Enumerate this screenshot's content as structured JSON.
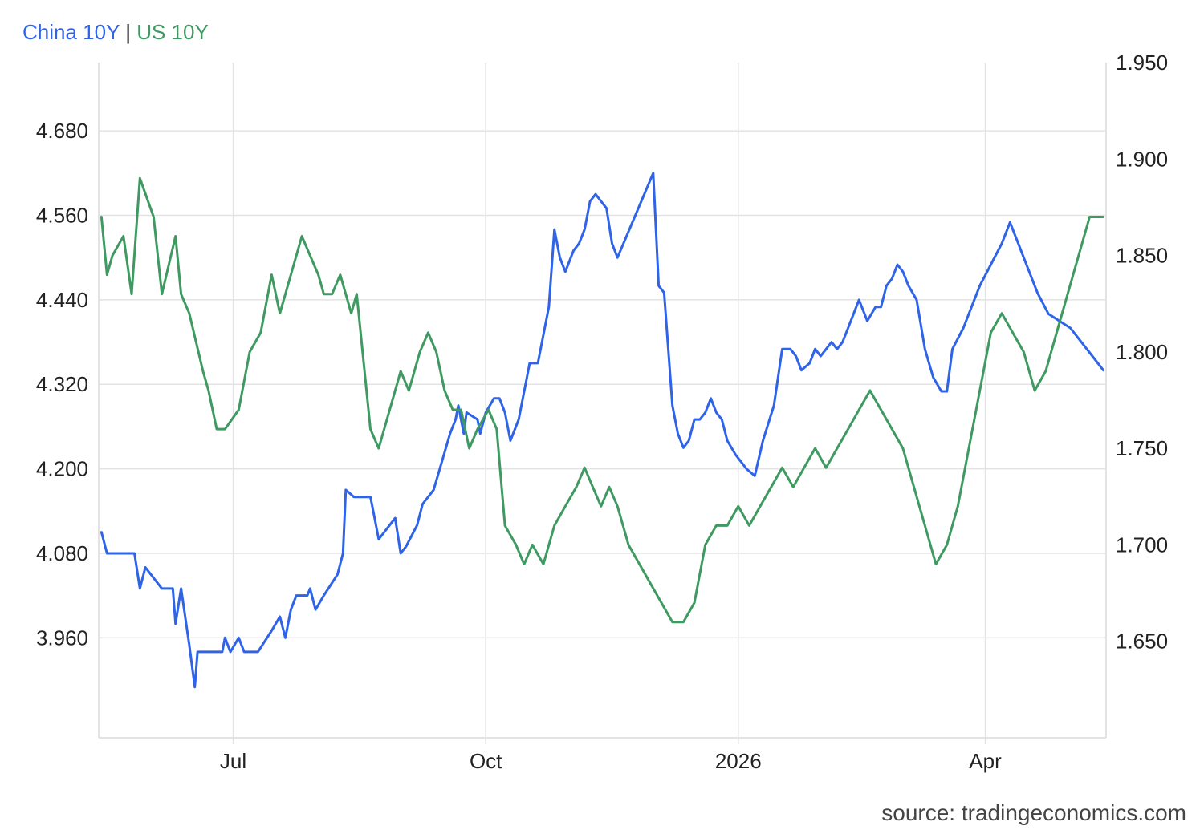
{
  "legend": {
    "series1": "China 10Y",
    "separator": "|",
    "series2": "US 10Y"
  },
  "source": "source: tradingeconomics.com",
  "colors": {
    "china": "#2f64e8",
    "us": "#3f9a62",
    "grid": "#e3e3e3",
    "axis_text": "#222222"
  },
  "chart_data": {
    "type": "line",
    "x_axis": {
      "type": "time",
      "range": [
        "2025-05-13",
        "2026-05-15"
      ],
      "tick_labels": [
        "Jul",
        "Oct",
        "2026",
        "Apr"
      ],
      "tick_dates": [
        "2025-07-01",
        "2025-10-01",
        "2026-01-01",
        "2026-04-01"
      ]
    },
    "y_left": {
      "range": [
        3.818,
        4.777
      ],
      "tick_labels": [
        "3.960",
        "4.080",
        "4.200",
        "4.320",
        "4.440",
        "4.560",
        "4.680"
      ],
      "ticks": [
        3.96,
        4.08,
        4.2,
        4.32,
        4.44,
        4.56,
        4.68
      ]
    },
    "y_right": {
      "range": [
        1.6,
        1.95
      ],
      "tick_labels": [
        "1.650",
        "1.700",
        "1.750",
        "1.800",
        "1.850",
        "1.900",
        "1.950"
      ],
      "ticks": [
        1.65,
        1.7,
        1.75,
        1.8,
        1.85,
        1.9,
        1.95
      ]
    },
    "grid": true,
    "series": [
      {
        "name": "China 10Y",
        "axis": "left",
        "points": [
          [
            "2025-05-14",
            4.11
          ],
          [
            "2025-05-16",
            4.08
          ],
          [
            "2025-05-26",
            4.08
          ],
          [
            "2025-05-28",
            4.03
          ],
          [
            "2025-05-30",
            4.06
          ],
          [
            "2025-06-05",
            4.03
          ],
          [
            "2025-06-09",
            4.03
          ],
          [
            "2025-06-10",
            3.98
          ],
          [
            "2025-06-12",
            4.03
          ],
          [
            "2025-06-15",
            3.95
          ],
          [
            "2025-06-17",
            3.89
          ],
          [
            "2025-06-18",
            3.94
          ],
          [
            "2025-06-27",
            3.94
          ],
          [
            "2025-06-28",
            3.96
          ],
          [
            "2025-06-30",
            3.94
          ],
          [
            "2025-07-03",
            3.96
          ],
          [
            "2025-07-05",
            3.94
          ],
          [
            "2025-07-10",
            3.94
          ],
          [
            "2025-07-15",
            3.97
          ],
          [
            "2025-07-18",
            3.99
          ],
          [
            "2025-07-20",
            3.96
          ],
          [
            "2025-07-22",
            4.0
          ],
          [
            "2025-07-24",
            4.02
          ],
          [
            "2025-07-28",
            4.02
          ],
          [
            "2025-07-29",
            4.03
          ],
          [
            "2025-07-31",
            4.0
          ],
          [
            "2025-08-03",
            4.02
          ],
          [
            "2025-08-08",
            4.05
          ],
          [
            "2025-08-10",
            4.08
          ],
          [
            "2025-08-11",
            4.17
          ],
          [
            "2025-08-14",
            4.16
          ],
          [
            "2025-08-20",
            4.16
          ],
          [
            "2025-08-21",
            4.14
          ],
          [
            "2025-08-23",
            4.1
          ],
          [
            "2025-08-27",
            4.12
          ],
          [
            "2025-08-29",
            4.13
          ],
          [
            "2025-08-31",
            4.08
          ],
          [
            "2025-09-02",
            4.09
          ],
          [
            "2025-09-06",
            4.12
          ],
          [
            "2025-09-08",
            4.15
          ],
          [
            "2025-09-12",
            4.17
          ],
          [
            "2025-09-15",
            4.21
          ],
          [
            "2025-09-18",
            4.25
          ],
          [
            "2025-09-20",
            4.27
          ],
          [
            "2025-09-21",
            4.29
          ],
          [
            "2025-09-23",
            4.25
          ],
          [
            "2025-09-24",
            4.28
          ],
          [
            "2025-09-28",
            4.27
          ],
          [
            "2025-09-29",
            4.25
          ],
          [
            "2025-10-01",
            4.28
          ],
          [
            "2025-10-04",
            4.3
          ],
          [
            "2025-10-06",
            4.3
          ],
          [
            "2025-10-08",
            4.28
          ],
          [
            "2025-10-10",
            4.24
          ],
          [
            "2025-10-13",
            4.27
          ],
          [
            "2025-10-17",
            4.35
          ],
          [
            "2025-10-20",
            4.35
          ],
          [
            "2025-10-24",
            4.43
          ],
          [
            "2025-10-26",
            4.54
          ],
          [
            "2025-10-28",
            4.5
          ],
          [
            "2025-10-30",
            4.48
          ],
          [
            "2025-11-02",
            4.51
          ],
          [
            "2025-11-04",
            4.52
          ],
          [
            "2025-11-06",
            4.54
          ],
          [
            "2025-11-08",
            4.58
          ],
          [
            "2025-11-10",
            4.59
          ],
          [
            "2025-11-12",
            4.58
          ],
          [
            "2025-11-14",
            4.57
          ],
          [
            "2025-11-16",
            4.52
          ],
          [
            "2025-11-18",
            4.5
          ],
          [
            "2025-12-01",
            4.62
          ],
          [
            "2025-12-03",
            4.46
          ],
          [
            "2025-12-05",
            4.45
          ],
          [
            "2025-12-08",
            4.29
          ],
          [
            "2025-12-10",
            4.25
          ],
          [
            "2025-12-12",
            4.23
          ],
          [
            "2025-12-14",
            4.24
          ],
          [
            "2025-12-16",
            4.27
          ],
          [
            "2025-12-18",
            4.27
          ],
          [
            "2025-12-20",
            4.28
          ],
          [
            "2025-12-22",
            4.3
          ],
          [
            "2025-12-24",
            4.28
          ],
          [
            "2025-12-26",
            4.27
          ],
          [
            "2025-12-28",
            4.24
          ],
          [
            "2025-12-31",
            4.22
          ],
          [
            "2026-01-04",
            4.2
          ],
          [
            "2026-01-07",
            4.19
          ],
          [
            "2026-01-10",
            4.24
          ],
          [
            "2026-01-14",
            4.29
          ],
          [
            "2026-01-17",
            4.37
          ],
          [
            "2026-01-20",
            4.37
          ],
          [
            "2026-01-22",
            4.36
          ],
          [
            "2026-01-24",
            4.34
          ],
          [
            "2026-01-27",
            4.35
          ],
          [
            "2026-01-29",
            4.37
          ],
          [
            "2026-01-31",
            4.36
          ],
          [
            "2026-02-02",
            4.37
          ],
          [
            "2026-02-04",
            4.38
          ],
          [
            "2026-02-06",
            4.37
          ],
          [
            "2026-02-08",
            4.38
          ],
          [
            "2026-02-10",
            4.4
          ],
          [
            "2026-02-12",
            4.42
          ],
          [
            "2026-02-14",
            4.44
          ],
          [
            "2026-02-17",
            4.41
          ],
          [
            "2026-02-20",
            4.43
          ],
          [
            "2026-02-22",
            4.43
          ],
          [
            "2026-02-24",
            4.46
          ],
          [
            "2026-02-26",
            4.47
          ],
          [
            "2026-02-28",
            4.49
          ],
          [
            "2026-03-02",
            4.48
          ],
          [
            "2026-03-04",
            4.46
          ],
          [
            "2026-03-07",
            4.44
          ],
          [
            "2026-03-10",
            4.37
          ],
          [
            "2026-03-13",
            4.33
          ],
          [
            "2026-03-16",
            4.31
          ],
          [
            "2026-03-18",
            4.31
          ],
          [
            "2026-03-20",
            4.37
          ],
          [
            "2026-03-24",
            4.4
          ],
          [
            "2026-03-27",
            4.43
          ],
          [
            "2026-03-30",
            4.46
          ],
          [
            "2026-04-03",
            4.49
          ],
          [
            "2026-04-07",
            4.52
          ],
          [
            "2026-04-10",
            4.55
          ],
          [
            "2026-04-13",
            4.52
          ],
          [
            "2026-04-16",
            4.49
          ],
          [
            "2026-04-20",
            4.45
          ],
          [
            "2026-04-24",
            4.42
          ],
          [
            "2026-04-28",
            4.41
          ],
          [
            "2026-05-02",
            4.4
          ],
          [
            "2026-05-06",
            4.38
          ],
          [
            "2026-05-10",
            4.36
          ],
          [
            "2026-05-14",
            4.34
          ]
        ]
      },
      {
        "name": "US 10Y",
        "axis": "right",
        "points": [
          [
            "2025-05-14",
            1.87
          ],
          [
            "2025-05-16",
            1.84
          ],
          [
            "2025-05-18",
            1.85
          ],
          [
            "2025-05-22",
            1.86
          ],
          [
            "2025-05-25",
            1.83
          ],
          [
            "2025-05-28",
            1.89
          ],
          [
            "2025-06-02",
            1.87
          ],
          [
            "2025-06-05",
            1.83
          ],
          [
            "2025-06-10",
            1.86
          ],
          [
            "2025-06-12",
            1.83
          ],
          [
            "2025-06-15",
            1.82
          ],
          [
            "2025-06-20",
            1.79
          ],
          [
            "2025-06-22",
            1.78
          ],
          [
            "2025-06-25",
            1.76
          ],
          [
            "2025-06-28",
            1.76
          ],
          [
            "2025-07-03",
            1.77
          ],
          [
            "2025-07-07",
            1.8
          ],
          [
            "2025-07-11",
            1.81
          ],
          [
            "2025-07-15",
            1.84
          ],
          [
            "2025-07-18",
            1.82
          ],
          [
            "2025-07-22",
            1.84
          ],
          [
            "2025-07-26",
            1.86
          ],
          [
            "2025-07-29",
            1.85
          ],
          [
            "2025-08-01",
            1.84
          ],
          [
            "2025-08-03",
            1.83
          ],
          [
            "2025-08-06",
            1.83
          ],
          [
            "2025-08-09",
            1.84
          ],
          [
            "2025-08-13",
            1.82
          ],
          [
            "2025-08-15",
            1.83
          ],
          [
            "2025-08-20",
            1.76
          ],
          [
            "2025-08-23",
            1.75
          ],
          [
            "2025-08-27",
            1.77
          ],
          [
            "2025-08-31",
            1.79
          ],
          [
            "2025-09-03",
            1.78
          ],
          [
            "2025-09-07",
            1.8
          ],
          [
            "2025-09-10",
            1.81
          ],
          [
            "2025-09-13",
            1.8
          ],
          [
            "2025-09-16",
            1.78
          ],
          [
            "2025-09-19",
            1.77
          ],
          [
            "2025-09-22",
            1.77
          ],
          [
            "2025-09-25",
            1.75
          ],
          [
            "2025-09-28",
            1.76
          ],
          [
            "2025-10-02",
            1.77
          ],
          [
            "2025-10-05",
            1.76
          ],
          [
            "2025-10-08",
            1.71
          ],
          [
            "2025-10-12",
            1.7
          ],
          [
            "2025-10-15",
            1.69
          ],
          [
            "2025-10-18",
            1.7
          ],
          [
            "2025-10-22",
            1.69
          ],
          [
            "2025-10-26",
            1.71
          ],
          [
            "2025-10-30",
            1.72
          ],
          [
            "2025-11-03",
            1.73
          ],
          [
            "2025-11-06",
            1.74
          ],
          [
            "2025-11-09",
            1.73
          ],
          [
            "2025-11-12",
            1.72
          ],
          [
            "2025-11-15",
            1.73
          ],
          [
            "2025-11-18",
            1.72
          ],
          [
            "2025-11-22",
            1.7
          ],
          [
            "2025-11-26",
            1.69
          ],
          [
            "2025-11-30",
            1.68
          ],
          [
            "2025-12-04",
            1.67
          ],
          [
            "2025-12-08",
            1.66
          ],
          [
            "2025-12-12",
            1.66
          ],
          [
            "2025-12-16",
            1.67
          ],
          [
            "2025-12-20",
            1.7
          ],
          [
            "2025-12-24",
            1.71
          ],
          [
            "2025-12-28",
            1.71
          ],
          [
            "2026-01-01",
            1.72
          ],
          [
            "2026-01-05",
            1.71
          ],
          [
            "2026-01-09",
            1.72
          ],
          [
            "2026-01-13",
            1.73
          ],
          [
            "2026-01-17",
            1.74
          ],
          [
            "2026-01-21",
            1.73
          ],
          [
            "2026-01-25",
            1.74
          ],
          [
            "2026-01-29",
            1.75
          ],
          [
            "2026-02-02",
            1.74
          ],
          [
            "2026-02-06",
            1.75
          ],
          [
            "2026-02-10",
            1.76
          ],
          [
            "2026-02-14",
            1.77
          ],
          [
            "2026-02-18",
            1.78
          ],
          [
            "2026-02-22",
            1.77
          ],
          [
            "2026-02-26",
            1.76
          ],
          [
            "2026-03-02",
            1.75
          ],
          [
            "2026-03-06",
            1.73
          ],
          [
            "2026-03-10",
            1.71
          ],
          [
            "2026-03-14",
            1.69
          ],
          [
            "2026-03-18",
            1.7
          ],
          [
            "2026-03-22",
            1.72
          ],
          [
            "2026-03-26",
            1.75
          ],
          [
            "2026-03-30",
            1.78
          ],
          [
            "2026-04-03",
            1.81
          ],
          [
            "2026-04-07",
            1.82
          ],
          [
            "2026-04-11",
            1.81
          ],
          [
            "2026-04-15",
            1.8
          ],
          [
            "2026-04-19",
            1.78
          ],
          [
            "2026-04-23",
            1.79
          ],
          [
            "2026-04-27",
            1.81
          ],
          [
            "2026-05-01",
            1.83
          ],
          [
            "2026-05-05",
            1.85
          ],
          [
            "2026-05-09",
            1.87
          ],
          [
            "2026-05-14",
            1.87
          ]
        ]
      }
    ]
  }
}
